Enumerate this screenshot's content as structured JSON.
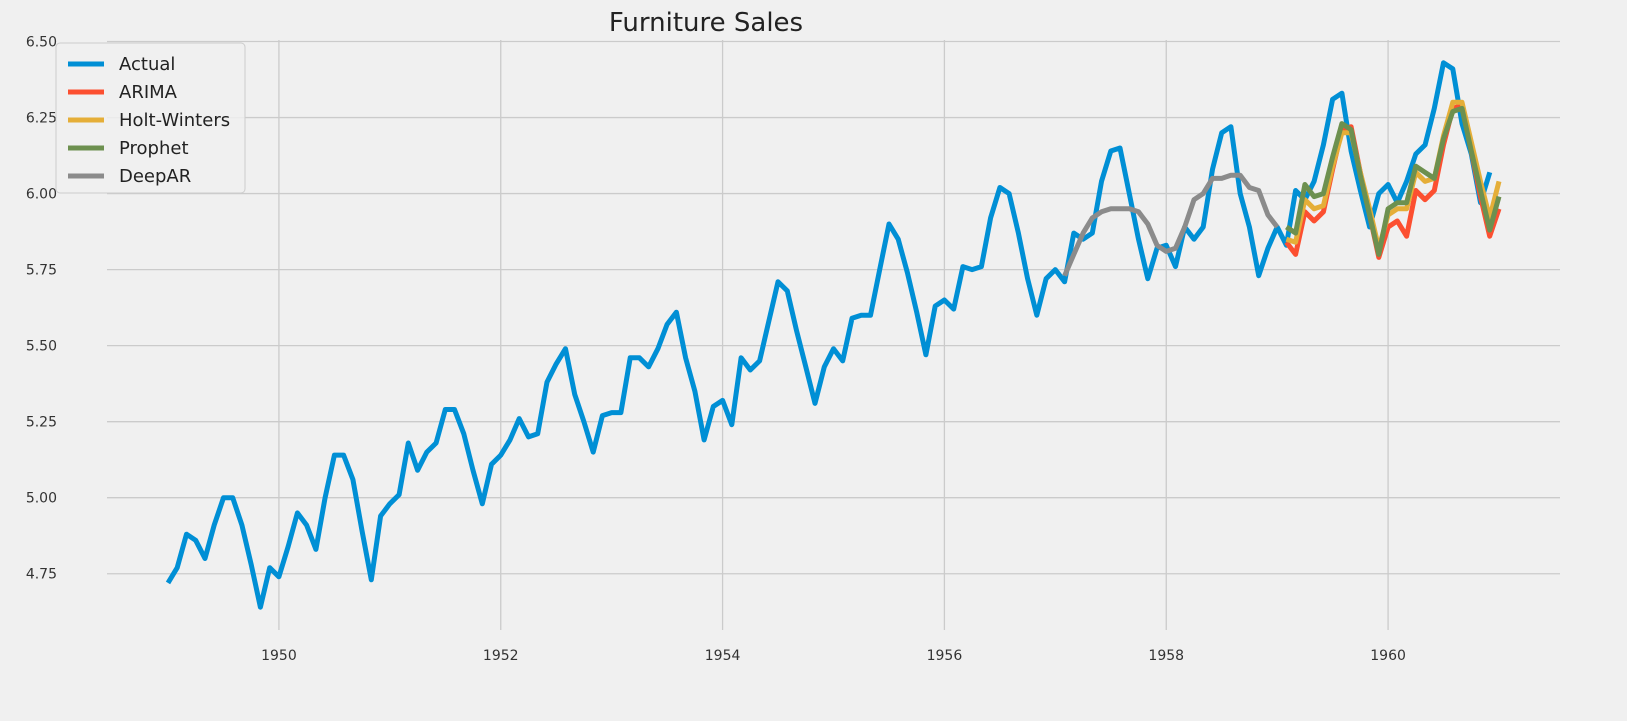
{
  "chart_data": {
    "type": "line",
    "title": "Furniture Sales",
    "xlabel": "",
    "ylabel": "",
    "xlim": [
      1948.45,
      1961.55
    ],
    "ylim": [
      4.565,
      6.505
    ],
    "x_ticks": [
      1950,
      1952,
      1954,
      1956,
      1958,
      1960
    ],
    "y_ticks": [
      4.75,
      5.0,
      5.25,
      5.5,
      5.75,
      6.0,
      6.25,
      6.5
    ],
    "y_tick_labels": [
      "4.75",
      "5.00",
      "5.25",
      "5.50",
      "5.75",
      "6.00",
      "6.25",
      "6.50"
    ],
    "grid": true,
    "legend_position": "top-left",
    "series": [
      {
        "name": "Actual",
        "color": "#008fd5",
        "x_start": 1949.0,
        "x_step": 0.0833333,
        "values": [
          4.72,
          4.77,
          4.88,
          4.86,
          4.8,
          4.91,
          5.0,
          5.0,
          4.91,
          4.78,
          4.64,
          4.77,
          4.74,
          4.84,
          4.95,
          4.91,
          4.83,
          5.0,
          5.14,
          5.14,
          5.06,
          4.89,
          4.73,
          4.94,
          4.98,
          5.01,
          5.18,
          5.09,
          5.15,
          5.18,
          5.29,
          5.29,
          5.21,
          5.09,
          4.98,
          5.11,
          5.14,
          5.19,
          5.26,
          5.2,
          5.21,
          5.38,
          5.44,
          5.49,
          5.34,
          5.25,
          5.15,
          5.27,
          5.28,
          5.28,
          5.46,
          5.46,
          5.43,
          5.49,
          5.57,
          5.61,
          5.46,
          5.35,
          5.19,
          5.3,
          5.32,
          5.24,
          5.46,
          5.42,
          5.45,
          5.58,
          5.71,
          5.68,
          5.55,
          5.43,
          5.31,
          5.43,
          5.49,
          5.45,
          5.59,
          5.6,
          5.6,
          5.75,
          5.9,
          5.85,
          5.74,
          5.61,
          5.47,
          5.63,
          5.65,
          5.62,
          5.76,
          5.75,
          5.76,
          5.92,
          6.02,
          6.0,
          5.87,
          5.72,
          5.6,
          5.72,
          5.75,
          5.71,
          5.87,
          5.85,
          5.87,
          6.04,
          6.14,
          6.15,
          6.0,
          5.85,
          5.72,
          5.82,
          5.83,
          5.76,
          5.89,
          5.85,
          5.89,
          6.08,
          6.2,
          6.22,
          6.0,
          5.89,
          5.73,
          5.82,
          5.89,
          5.83,
          6.01,
          5.98,
          6.04,
          6.16,
          6.31,
          6.33,
          6.14,
          6.01,
          5.89,
          6.0,
          6.03,
          5.97,
          6.04,
          6.13,
          6.16,
          6.28,
          6.43,
          6.41,
          6.23,
          6.13,
          5.97,
          6.07
        ]
      },
      {
        "name": "ARIMA",
        "color": "#fc4f30",
        "x_start": 1959.0833,
        "x_step": 0.0833333,
        "values": [
          5.84,
          5.8,
          5.94,
          5.91,
          5.94,
          6.08,
          6.21,
          6.22,
          6.07,
          5.93,
          5.79,
          5.89,
          5.91,
          5.86,
          6.01,
          5.98,
          6.01,
          6.16,
          6.28,
          6.29,
          6.14,
          5.99,
          5.86,
          5.95
        ]
      },
      {
        "name": "Holt-Winters",
        "color": "#e5ae38",
        "x_start": 1959.0833,
        "x_step": 0.0833333,
        "values": [
          5.85,
          5.84,
          5.98,
          5.95,
          5.96,
          6.09,
          6.2,
          6.2,
          6.07,
          5.95,
          5.82,
          5.93,
          5.95,
          5.95,
          6.07,
          6.04,
          6.05,
          6.19,
          6.3,
          6.3,
          6.17,
          6.04,
          5.92,
          6.04
        ]
      },
      {
        "name": "Prophet",
        "color": "#6d904f",
        "x_start": 1959.0833,
        "x_step": 0.0833333,
        "values": [
          5.89,
          5.87,
          6.03,
          5.99,
          6.0,
          6.12,
          6.23,
          6.21,
          6.06,
          5.93,
          5.8,
          5.95,
          5.97,
          5.97,
          6.09,
          6.07,
          6.05,
          6.18,
          6.27,
          6.28,
          6.14,
          6.01,
          5.88,
          5.99
        ]
      },
      {
        "name": "DeepAR",
        "color": "#8b8b8b",
        "x_start": 1957.0833,
        "x_step": 0.0833333,
        "values": [
          5.73,
          5.8,
          5.87,
          5.92,
          5.94,
          5.95,
          5.95,
          5.95,
          5.94,
          5.9,
          5.83,
          5.81,
          5.82,
          5.89,
          5.98,
          6.0,
          6.05,
          6.05,
          6.06,
          6.06,
          6.02,
          6.01,
          5.93,
          5.89
        ]
      }
    ]
  }
}
